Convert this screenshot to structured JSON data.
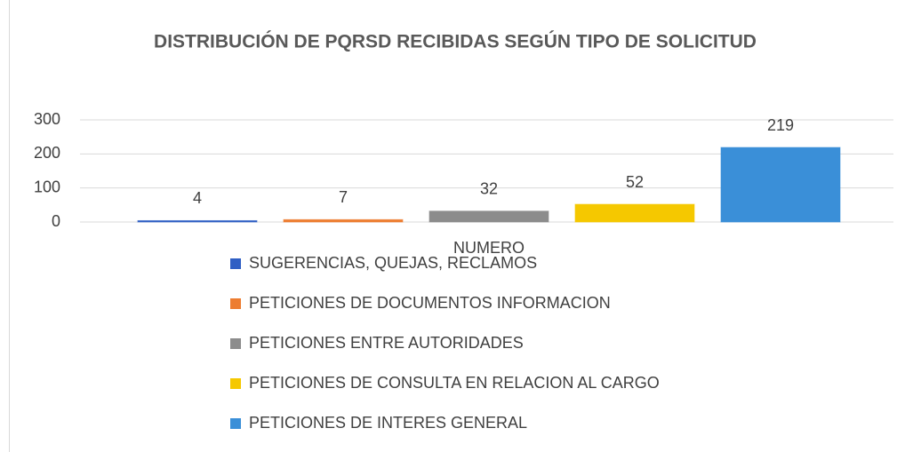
{
  "chart_data": {
    "type": "bar",
    "title": "DISTRIBUCIÓN DE PQRSD RECIBIDAS SEGÚN TIPO DE SOLICITUD",
    "categories": [
      "NUMERO"
    ],
    "series": [
      {
        "name": "SUGERENCIAS, QUEJAS, RECLAMOS",
        "color": "#2f5fc4",
        "values": [
          4
        ]
      },
      {
        "name": "PETICIONES DE DOCUMENTOS INFORMACION",
        "color": "#ed7d31",
        "values": [
          7
        ]
      },
      {
        "name": "PETICIONES ENTRE AUTORIDADES",
        "color": "#8c8c8c",
        "values": [
          32
        ]
      },
      {
        "name": "PETICIONES DE CONSULTA EN RELACION AL CARGO",
        "color": "#f5c800",
        "values": [
          52
        ]
      },
      {
        "name": "PETICIONES DE INTERES GENERAL",
        "color": "#3a8fd8",
        "values": [
          219
        ]
      }
    ],
    "ylim": [
      0,
      300
    ],
    "yticks": [
      0,
      100,
      200,
      300
    ],
    "grid": true,
    "legend": "bottom"
  }
}
